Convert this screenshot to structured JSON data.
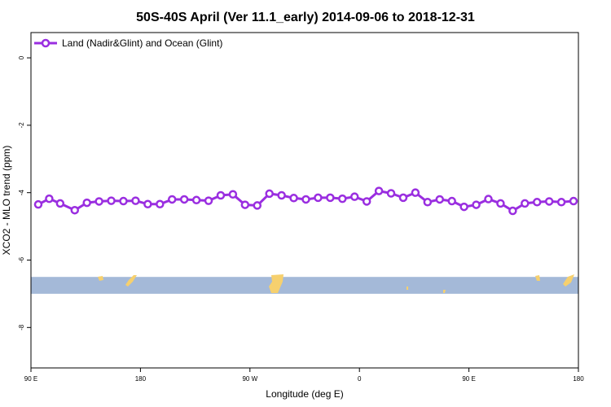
{
  "chart_data": {
    "type": "line",
    "title": "50S-40S April (Ver 11.1_early)   2014-09-06 to 2018-12-31",
    "xlabel": "Longitude (deg E)",
    "ylabel": "XCO2 - MLO trend (ppm)",
    "x_ticks": [
      {
        "value": 90,
        "label": "90 E"
      },
      {
        "value": 180,
        "label": "180"
      },
      {
        "value": 270,
        "label": "90 W"
      },
      {
        "value": 360,
        "label": "0"
      },
      {
        "value": 450,
        "label": "90 E"
      },
      {
        "value": 540,
        "label": "180"
      }
    ],
    "y_ticks": [
      {
        "value": 0,
        "label": "0"
      },
      {
        "value": -2,
        "label": "-2"
      },
      {
        "value": -4,
        "label": "-4"
      },
      {
        "value": -6,
        "label": "-6"
      },
      {
        "value": -8,
        "label": "-8"
      }
    ],
    "xlim": [
      90,
      540
    ],
    "ylim": [
      -9.2,
      0.75
    ],
    "legend_position": "top-left",
    "grid": false,
    "series": [
      {
        "name": "Land (Nadir&Glint) and Ocean (Glint)",
        "color": "#9a2ee0",
        "x": [
          96,
          105,
          114,
          126,
          136,
          146,
          156,
          166,
          176,
          186,
          196,
          206,
          216,
          226,
          236,
          246,
          256,
          266,
          276,
          286,
          296,
          306,
          316,
          326,
          336,
          346,
          356,
          366,
          376,
          386,
          396,
          406,
          416,
          426,
          436,
          446,
          456,
          466,
          476,
          486,
          496,
          506,
          516,
          526,
          536
        ],
        "values": [
          -4.35,
          -4.18,
          -4.32,
          -4.52,
          -4.3,
          -4.26,
          -4.24,
          -4.25,
          -4.24,
          -4.34,
          -4.34,
          -4.2,
          -4.2,
          -4.22,
          -4.24,
          -4.08,
          -4.05,
          -4.36,
          -4.38,
          -4.03,
          -4.08,
          -4.16,
          -4.2,
          -4.15,
          -4.15,
          -4.18,
          -4.12,
          -4.26,
          -3.95,
          -4.02,
          -4.15,
          -4.0,
          -4.28,
          -4.2,
          -4.25,
          -4.42,
          -4.36,
          -4.19,
          -4.32,
          -4.54,
          -4.32,
          -4.28,
          -4.26,
          -4.28,
          -4.25
        ]
      }
    ],
    "band": {
      "y_range": [
        -7.0,
        -6.5
      ],
      "ocean_color": "#a4b9d8",
      "land_color": "#f6d06e"
    }
  }
}
